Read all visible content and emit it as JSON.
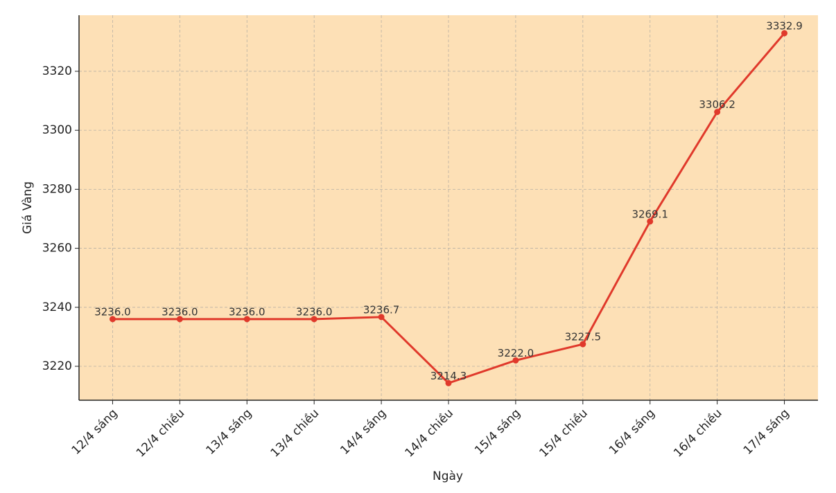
{
  "chart_data": {
    "type": "line",
    "x_label": "Ngày",
    "y_label": "Giá Vàng",
    "categories": [
      "12/4 sáng",
      "12/4 chiều",
      "13/4 sáng",
      "13/4 chiều",
      "14/4 sáng",
      "14/4 chiều",
      "15/4 sáng",
      "15/4 chiều",
      "16/4 sáng",
      "16/4 chiều",
      "17/4 sáng"
    ],
    "values": [
      3236.0,
      3236.0,
      3236.0,
      3236.0,
      3236.7,
      3214.3,
      3222.0,
      3227.5,
      3269.1,
      3306.2,
      3332.9
    ],
    "value_labels": [
      "3236.0",
      "3236.0",
      "3236.0",
      "3236.0",
      "3236.7",
      "3214.3",
      "3222.0",
      "3227.5",
      "3269.1",
      "3306.2",
      "3332.9"
    ],
    "color": "#e0392b",
    "background": "#fde0b6",
    "ylim": [
      3208.5,
      3339
    ],
    "yticks": [
      3220,
      3240,
      3260,
      3280,
      3300,
      3320
    ],
    "grid": true
  }
}
